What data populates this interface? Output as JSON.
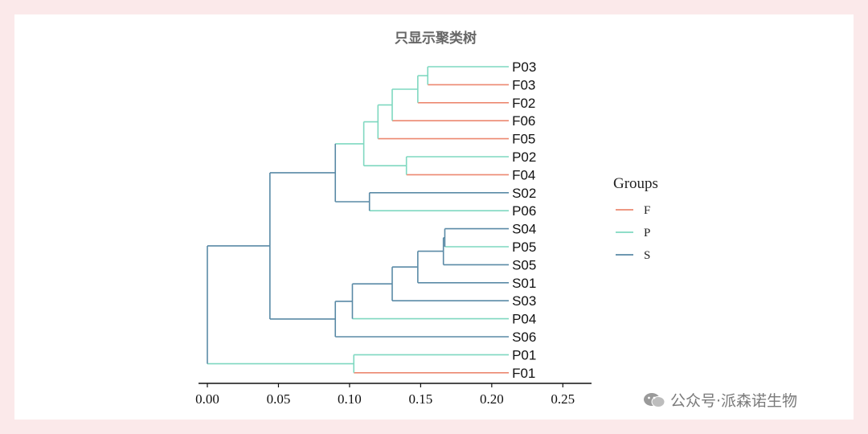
{
  "chart_data": {
    "type": "dendrogram",
    "title": "只显示聚类树",
    "xlim": [
      0.0,
      0.26
    ],
    "ticks": [
      0.0,
      0.05,
      0.1,
      0.15,
      0.2,
      0.25
    ],
    "tick_labels": [
      "0.00",
      "0.05",
      "0.10",
      "0.15",
      "0.20",
      "0.25"
    ],
    "leaves": [
      {
        "label": "P03",
        "group": "P"
      },
      {
        "label": "F03",
        "group": "F"
      },
      {
        "label": "F02",
        "group": "F"
      },
      {
        "label": "F06",
        "group": "F"
      },
      {
        "label": "F05",
        "group": "F"
      },
      {
        "label": "P02",
        "group": "P"
      },
      {
        "label": "F04",
        "group": "F"
      },
      {
        "label": "S02",
        "group": "S"
      },
      {
        "label": "P06",
        "group": "P"
      },
      {
        "label": "S04",
        "group": "S"
      },
      {
        "label": "P05",
        "group": "P"
      },
      {
        "label": "S05",
        "group": "S"
      },
      {
        "label": "S01",
        "group": "S"
      },
      {
        "label": "S03",
        "group": "S"
      },
      {
        "label": "P04",
        "group": "P"
      },
      {
        "label": "S06",
        "group": "S"
      },
      {
        "label": "P01",
        "group": "P"
      },
      {
        "label": "F01",
        "group": "F"
      }
    ],
    "merges": [
      {
        "id": "m1",
        "children": [
          "P03",
          "F03"
        ],
        "height": 0.155,
        "color": "P"
      },
      {
        "id": "m2",
        "children": [
          "m1",
          "F02"
        ],
        "height": 0.148,
        "color": "P"
      },
      {
        "id": "m3",
        "children": [
          "m2",
          "F06"
        ],
        "height": 0.13,
        "color": "P"
      },
      {
        "id": "m4",
        "children": [
          "m3",
          "F05"
        ],
        "height": 0.12,
        "color": "P"
      },
      {
        "id": "m5",
        "children": [
          "P02",
          "F04"
        ],
        "height": 0.14,
        "color": "P"
      },
      {
        "id": "m6",
        "children": [
          "m4",
          "m5"
        ],
        "height": 0.11,
        "color": "P"
      },
      {
        "id": "m7",
        "children": [
          "S02",
          "P06"
        ],
        "height": 0.114,
        "color": "S"
      },
      {
        "id": "m8",
        "children": [
          "m6",
          "m7"
        ],
        "height": 0.09,
        "color": "S"
      },
      {
        "id": "m9",
        "children": [
          "S04",
          "P05"
        ],
        "height": 0.167,
        "color": "S"
      },
      {
        "id": "m10",
        "children": [
          "m9",
          "S05"
        ],
        "height": 0.166,
        "color": "S"
      },
      {
        "id": "m11",
        "children": [
          "m10",
          "S01"
        ],
        "height": 0.148,
        "color": "S"
      },
      {
        "id": "m12",
        "children": [
          "m11",
          "S03"
        ],
        "height": 0.13,
        "color": "S"
      },
      {
        "id": "m13",
        "children": [
          "m12",
          "P04"
        ],
        "height": 0.102,
        "color": "S"
      },
      {
        "id": "m14",
        "children": [
          "m13",
          "S06"
        ],
        "height": 0.09,
        "color": "S"
      },
      {
        "id": "m15",
        "children": [
          "m8",
          "m14"
        ],
        "height": 0.044,
        "color": "S"
      },
      {
        "id": "m16",
        "children": [
          "P01",
          "F01"
        ],
        "height": 0.103,
        "color": "P"
      },
      {
        "id": "m17",
        "children": [
          "m15",
          "m16"
        ],
        "height": 0.0,
        "color": "S"
      }
    ],
    "legend": {
      "title": "Groups",
      "position": "right",
      "items": [
        {
          "label": "F",
          "color": "#ec8870"
        },
        {
          "label": "P",
          "color": "#7fd8c0"
        },
        {
          "label": "S",
          "color": "#5a8aa6"
        }
      ]
    },
    "group_colors": {
      "F": "#ec8870",
      "P": "#7fd8c0",
      "S": "#5a8aa6"
    }
  },
  "watermark": {
    "text": "公众号·派森诺生物",
    "icon": "wechat-icon"
  }
}
